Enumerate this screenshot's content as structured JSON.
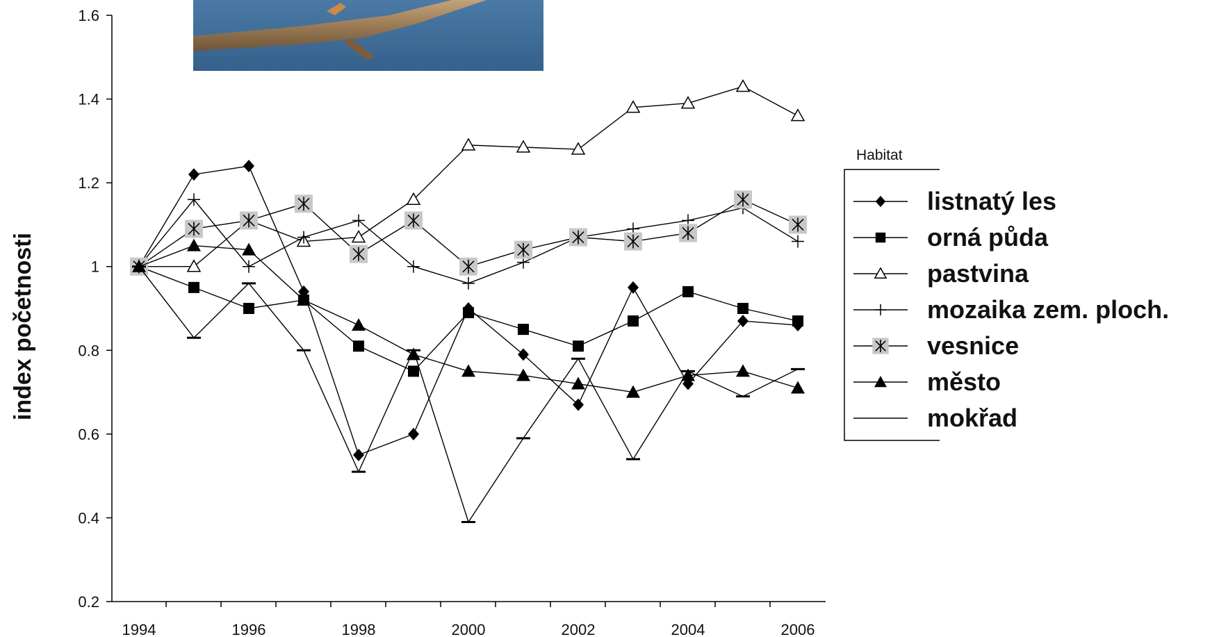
{
  "chart_data": {
    "type": "line",
    "title": "",
    "xlabel": "",
    "ylabel": "index početnosti",
    "xlim": [
      1994,
      2006
    ],
    "ylim": [
      0.2,
      1.6
    ],
    "x_ticks": [
      "1994",
      "1996",
      "1998",
      "2000",
      "2002",
      "2004",
      "2006"
    ],
    "y_ticks": [
      "0.2",
      "0.4",
      "0.6",
      "0.8",
      "1",
      "1.2",
      "1.4",
      "1.6"
    ],
    "grid": false,
    "legend": {
      "title": "Habitat",
      "placement": "right"
    },
    "x": [
      1994,
      1995,
      1996,
      1997,
      1998,
      1999,
      2000,
      2001,
      2002,
      2003,
      2004,
      2005,
      2006
    ],
    "series": [
      {
        "name": "listnatý les",
        "marker": "diamond",
        "values": [
          1.0,
          1.22,
          1.24,
          0.94,
          0.55,
          0.6,
          0.9,
          0.79,
          0.67,
          0.95,
          0.72,
          0.87,
          0.86
        ]
      },
      {
        "name": "orná půda",
        "marker": "square",
        "values": [
          1.0,
          0.95,
          0.9,
          0.92,
          0.81,
          0.75,
          0.89,
          0.85,
          0.81,
          0.87,
          0.94,
          0.9,
          0.87
        ]
      },
      {
        "name": "pastvina",
        "marker": "triangle-open",
        "values": [
          1.0,
          1.0,
          1.11,
          1.06,
          1.07,
          1.16,
          1.29,
          1.285,
          1.28,
          1.38,
          1.39,
          1.43,
          1.36
        ]
      },
      {
        "name": "mozaika zem. ploch.",
        "marker": "plus",
        "values": [
          1.0,
          1.16,
          1.0,
          1.07,
          1.11,
          1.0,
          0.96,
          1.01,
          1.07,
          1.09,
          1.11,
          1.14,
          1.06
        ]
      },
      {
        "name": "vesnice",
        "marker": "asterisk-box",
        "values": [
          1.0,
          1.09,
          1.11,
          1.15,
          1.03,
          1.11,
          1.0,
          1.04,
          1.07,
          1.06,
          1.08,
          1.16,
          1.1
        ]
      },
      {
        "name": "město",
        "marker": "triangle-filled",
        "values": [
          1.0,
          1.05,
          1.04,
          0.92,
          0.86,
          0.79,
          0.75,
          0.74,
          0.72,
          0.7,
          0.74,
          0.75,
          0.71
        ]
      },
      {
        "name": "mokřad",
        "marker": "dash",
        "values": [
          1.0,
          0.83,
          0.96,
          0.8,
          0.51,
          0.8,
          0.39,
          0.59,
          0.78,
          0.54,
          0.75,
          0.69,
          0.755
        ]
      }
    ]
  },
  "photo": {
    "description_icon": "branch-photo",
    "sky_color": "#3f6f99",
    "branch_color": "#9a7b55"
  }
}
